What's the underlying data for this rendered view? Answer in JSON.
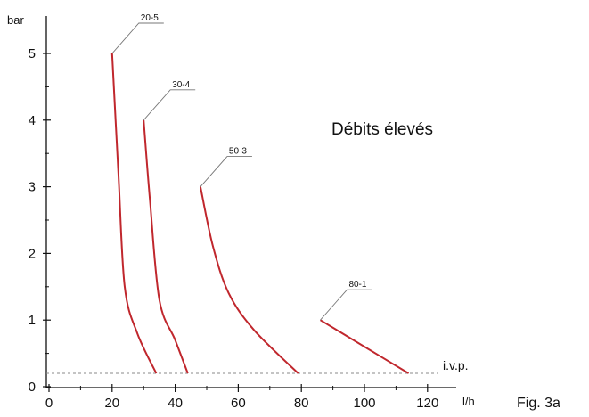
{
  "chart_data": {
    "type": "line",
    "xlabel": "l/h",
    "ylabel": "bar",
    "xlim": [
      0,
      125
    ],
    "ylim": [
      0,
      5.5
    ],
    "x_ticks": [
      0,
      20,
      40,
      60,
      80,
      100,
      120
    ],
    "y_ticks": [
      0,
      1,
      2,
      3,
      4,
      5
    ],
    "grid": false,
    "line_color": "#c0272d",
    "series": [
      {
        "name": "20-5",
        "points": [
          [
            20,
            5.0
          ],
          [
            22,
            3.2
          ],
          [
            24,
            1.5
          ],
          [
            28,
            0.8
          ],
          [
            34,
            0.2
          ]
        ]
      },
      {
        "name": "30-4",
        "points": [
          [
            30,
            4.0
          ],
          [
            32,
            2.8
          ],
          [
            35,
            1.3
          ],
          [
            40,
            0.7
          ],
          [
            44,
            0.2
          ]
        ]
      },
      {
        "name": "50-3",
        "points": [
          [
            48,
            3.0
          ],
          [
            52,
            2.1
          ],
          [
            57,
            1.4
          ],
          [
            65,
            0.85
          ],
          [
            79,
            0.2
          ]
        ]
      },
      {
        "name": "80-1",
        "points": [
          [
            86,
            1.0
          ],
          [
            100,
            0.6
          ],
          [
            114,
            0.2
          ]
        ]
      }
    ],
    "reference_line": {
      "label": "i.v.p.",
      "y": 0.2,
      "style": "dashed"
    },
    "annotation": "Débits élevés",
    "figure_label": "Fig. 3a"
  }
}
